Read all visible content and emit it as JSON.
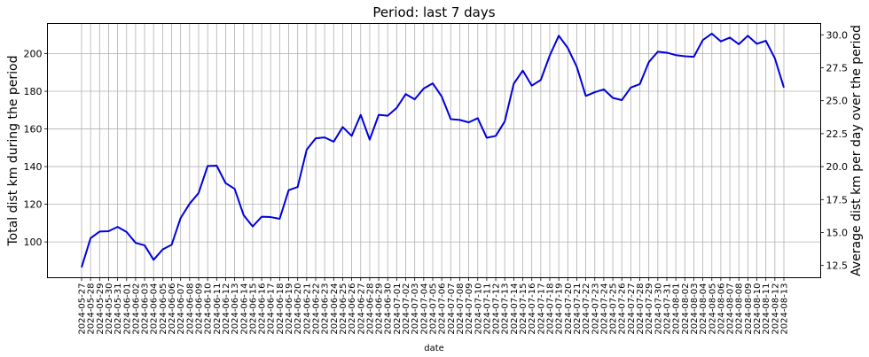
{
  "chart_data": {
    "type": "line",
    "title": "Period: last 7 days",
    "xlabel": "date",
    "ylabel_left": "Total dist km during the period",
    "ylabel_right": "Average dist km per day over the period",
    "ylim_left": [
      81,
      216
    ],
    "ylim_right": [
      11.57,
      30.86
    ],
    "yticks_left": [
      100,
      120,
      140,
      160,
      180,
      200
    ],
    "yticks_right": [
      "12.5",
      "15.0",
      "17.5",
      "20.0",
      "22.5",
      "25.0",
      "27.5",
      "30.0"
    ],
    "grid": true,
    "line_color": "#0000dd",
    "series": [
      {
        "x": [
          "2024-05-27",
          "2024-05-28",
          "2024-05-29",
          "2024-05-30",
          "2024-05-31",
          "2024-06-01",
          "2024-06-02",
          "2024-06-03",
          "2024-06-04",
          "2024-06-05",
          "2024-06-06",
          "2024-06-07",
          "2024-06-08",
          "2024-06-09",
          "2024-06-10",
          "2024-06-11",
          "2024-06-12",
          "2024-06-13",
          "2024-06-14",
          "2024-06-15",
          "2024-06-16",
          "2024-06-17",
          "2024-06-18",
          "2024-06-19",
          "2024-06-20",
          "2024-06-21",
          "2024-06-22",
          "2024-06-23",
          "2024-06-24",
          "2024-06-25",
          "2024-06-26",
          "2024-06-27",
          "2024-06-28",
          "2024-06-29",
          "2024-06-30",
          "2024-07-01",
          "2024-07-02",
          "2024-07-03",
          "2024-07-04",
          "2024-07-05",
          "2024-07-06",
          "2024-07-07",
          "2024-07-08",
          "2024-07-09",
          "2024-07-10",
          "2024-07-11",
          "2024-07-12",
          "2024-07-13",
          "2024-07-14",
          "2024-07-15",
          "2024-07-16",
          "2024-07-17",
          "2024-07-18",
          "2024-07-19",
          "2024-07-20",
          "2024-07-21",
          "2024-07-22",
          "2024-07-23",
          "2024-07-24",
          "2024-07-25",
          "2024-07-26",
          "2024-07-27",
          "2024-07-28",
          "2024-07-29",
          "2024-07-30",
          "2024-07-31",
          "2024-08-01",
          "2024-08-02",
          "2024-08-03",
          "2024-08-04",
          "2024-08-05",
          "2024-08-06",
          "2024-08-07",
          "2024-08-08",
          "2024-08-09",
          "2024-08-10",
          "2024-08-11",
          "2024-08-12",
          "2024-08-13"
        ],
        "values": [
          86.5,
          102,
          105.5,
          105.7,
          108,
          105.3,
          99.5,
          98.2,
          90.5,
          96,
          98.5,
          112.7,
          120.3,
          126,
          140.3,
          140.5,
          131.2,
          128.2,
          114.2,
          108.2,
          113.4,
          113.2,
          112.3,
          127.5,
          129.2,
          149,
          155,
          155.5,
          153.2,
          161,
          156.3,
          167.5,
          154.3,
          167.5,
          167,
          171.2,
          178.5,
          175.7,
          181.5,
          184.2,
          177.2,
          165.2,
          164.8,
          163.5,
          165.7,
          155.3,
          156.3,
          164,
          184,
          191,
          183,
          186,
          199,
          209.5,
          203,
          193,
          177.5,
          179.5,
          181,
          176.5,
          175.3,
          182,
          183.8,
          195.5,
          201,
          200.5,
          199.2,
          198.6,
          198.3,
          207.2,
          210.6,
          206.5,
          208.5,
          205,
          209.5,
          205.2,
          206.8,
          197.5,
          182
        ]
      }
    ]
  }
}
